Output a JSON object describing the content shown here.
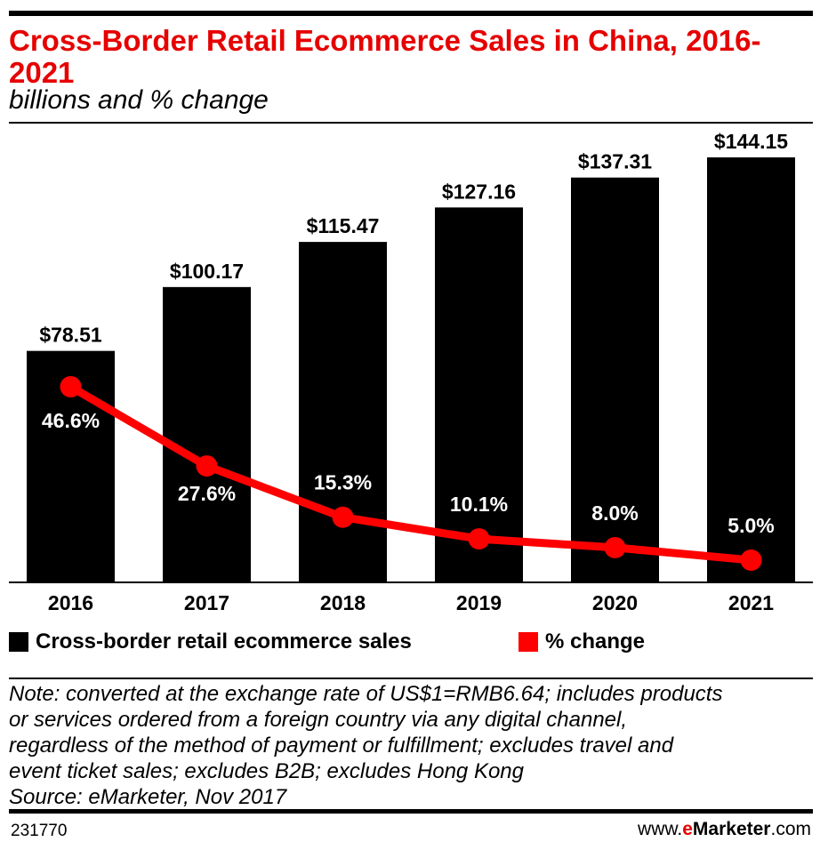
{
  "header": {
    "title": "Cross-Border Retail Ecommerce Sales in China, 2016-2021",
    "subtitle": "billions and % change"
  },
  "colors": {
    "bar": "#000000",
    "line": "#ff0000",
    "title": "#e60000"
  },
  "chart_data": {
    "type": "bar",
    "categories": [
      "2016",
      "2017",
      "2018",
      "2019",
      "2020",
      "2021"
    ],
    "series": [
      {
        "name": "Cross-border retail ecommerce sales",
        "type": "bar",
        "values": [
          78.51,
          100.17,
          115.47,
          127.16,
          137.31,
          144.15
        ],
        "labels": [
          "$78.51",
          "$100.17",
          "$115.47",
          "$127.16",
          "$137.31",
          "$144.15"
        ]
      },
      {
        "name": "% change",
        "type": "line",
        "values": [
          46.6,
          27.6,
          15.3,
          10.1,
          8.0,
          5.0
        ],
        "labels": [
          "46.6%",
          "27.6%",
          "15.3%",
          "10.1%",
          "8.0%",
          "5.0%"
        ]
      }
    ],
    "ylim": [
      0,
      150
    ],
    "legend": [
      "Cross-border retail ecommerce sales",
      "% change"
    ],
    "legend_position": "bottom-left"
  },
  "footer": {
    "note_lines": [
      "Note: converted at the exchange rate of US$1=RMB6.64; includes products",
      "or services ordered from a foreign country via any digital channel,",
      "regardless of the method of payment or fulfillment; excludes travel and",
      "event ticket sales; excludes B2B; excludes Hong Kong",
      "Source: eMarketer, Nov 2017"
    ],
    "chart_id": "231770",
    "site": {
      "prefix": "www.",
      "e": "e",
      "brand": "Marketer",
      "suffix": ".com"
    }
  }
}
